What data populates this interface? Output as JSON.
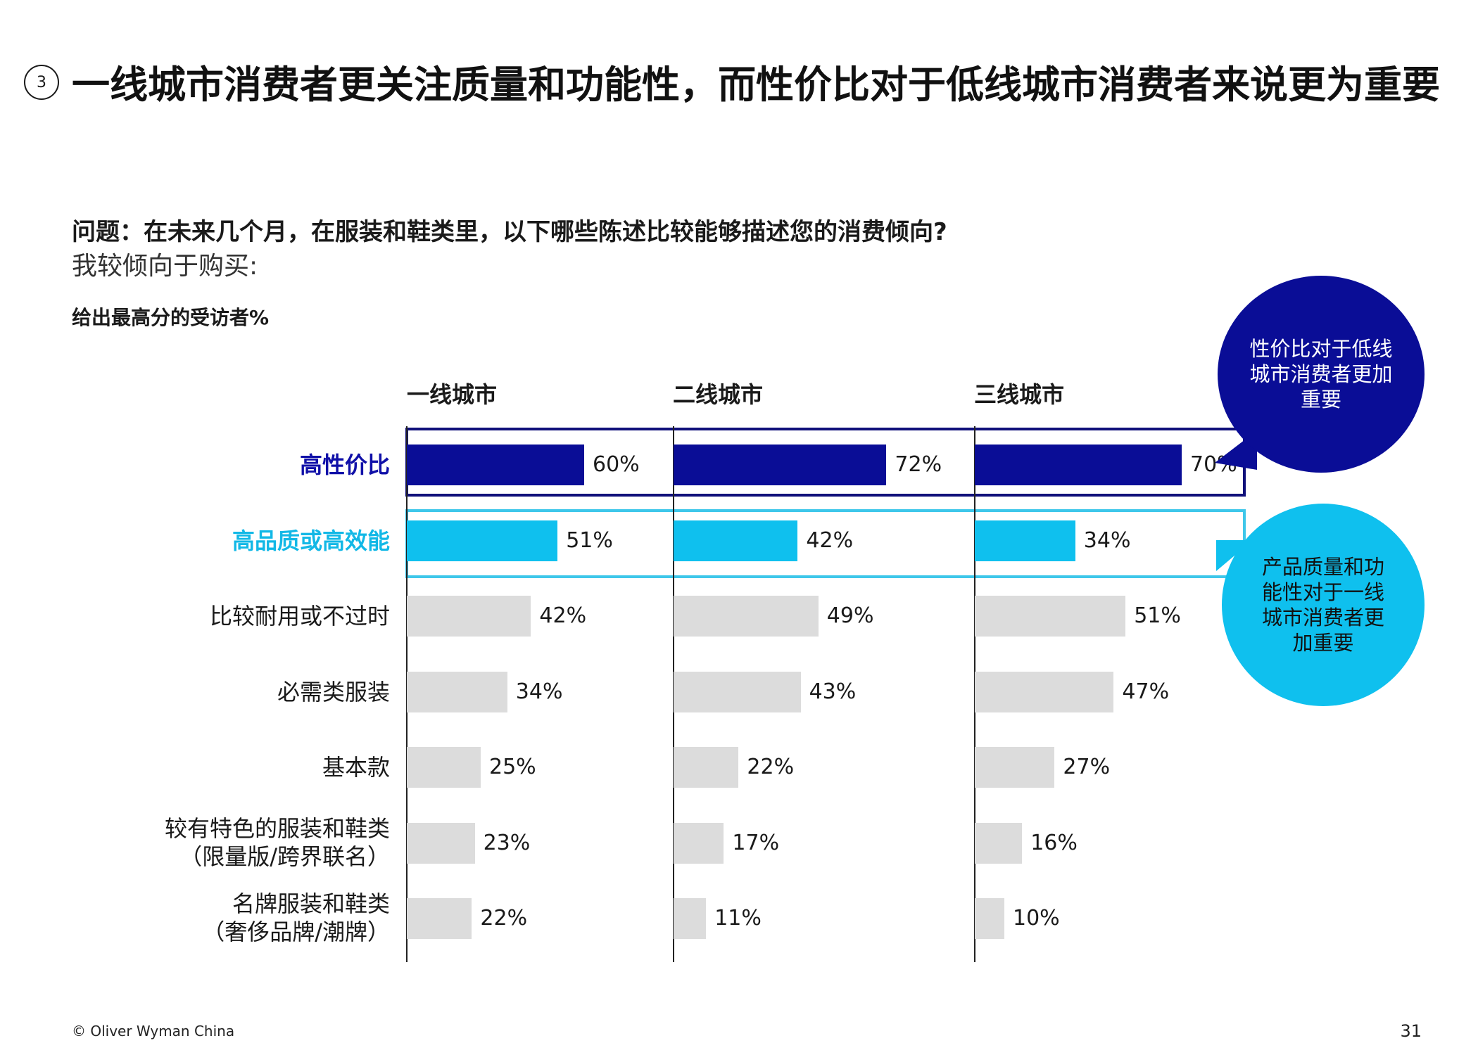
{
  "slide_number": "3",
  "title": "一线城市消费者更关注质量和功能性，而性价比对于低线城市消费者来说更为重要",
  "question": "问题：在未来几个月，在服装和鞋类里，以下哪些陈述比较能够描述您的消费倾向?",
  "question_sub": "我较倾向于购买:",
  "measure": "给出最高分的受访者%",
  "colors": {
    "dark_blue": "#0a0d96",
    "cyan": "#0fc0ee",
    "grey": "#dcdcdc"
  },
  "chart_data": {
    "type": "bar",
    "orientation": "horizontal",
    "title": "",
    "panels": [
      "一线城市",
      "二线城市",
      "三线城市"
    ],
    "categories": [
      {
        "line1": "高性价比",
        "line2": ""
      },
      {
        "line1": "高品质或高效能",
        "line2": ""
      },
      {
        "line1": "比较耐用或不过时",
        "line2": ""
      },
      {
        "line1": "必需类服装",
        "line2": ""
      },
      {
        "line1": "基本款",
        "line2": ""
      },
      {
        "line1": "较有特色的服装和鞋类",
        "line2": "（限量版/跨界联名）"
      },
      {
        "line1": "名牌服装和鞋类",
        "line2": "（奢侈品牌/潮牌）"
      }
    ],
    "series": [
      {
        "values": [
          60,
          51,
          42,
          34,
          25,
          23,
          22
        ],
        "labels": [
          "60%",
          "51%",
          "42%",
          "34%",
          "25%",
          "23%",
          "22%"
        ]
      },
      {
        "values": [
          72,
          42,
          49,
          43,
          22,
          17,
          11
        ],
        "labels": [
          "72%",
          "42%",
          "49%",
          "43%",
          "22%",
          "17%",
          "11%"
        ]
      },
      {
        "values": [
          70,
          34,
          51,
          47,
          27,
          16,
          10
        ],
        "labels": [
          "70%",
          "34%",
          "51%",
          "47%",
          "27%",
          "16%",
          "10%"
        ]
      }
    ],
    "highlighted_rows": {
      "dark_blue": 0,
      "cyan": 1
    },
    "unit": "%"
  },
  "callouts": {
    "dark": "性价比对于低线\n城市消费者更加\n重要",
    "cyan": "产品质量和功\n能性对于一线\n城市消费者更\n加重要"
  },
  "footer": "© Oliver Wyman China",
  "page_number": "31"
}
